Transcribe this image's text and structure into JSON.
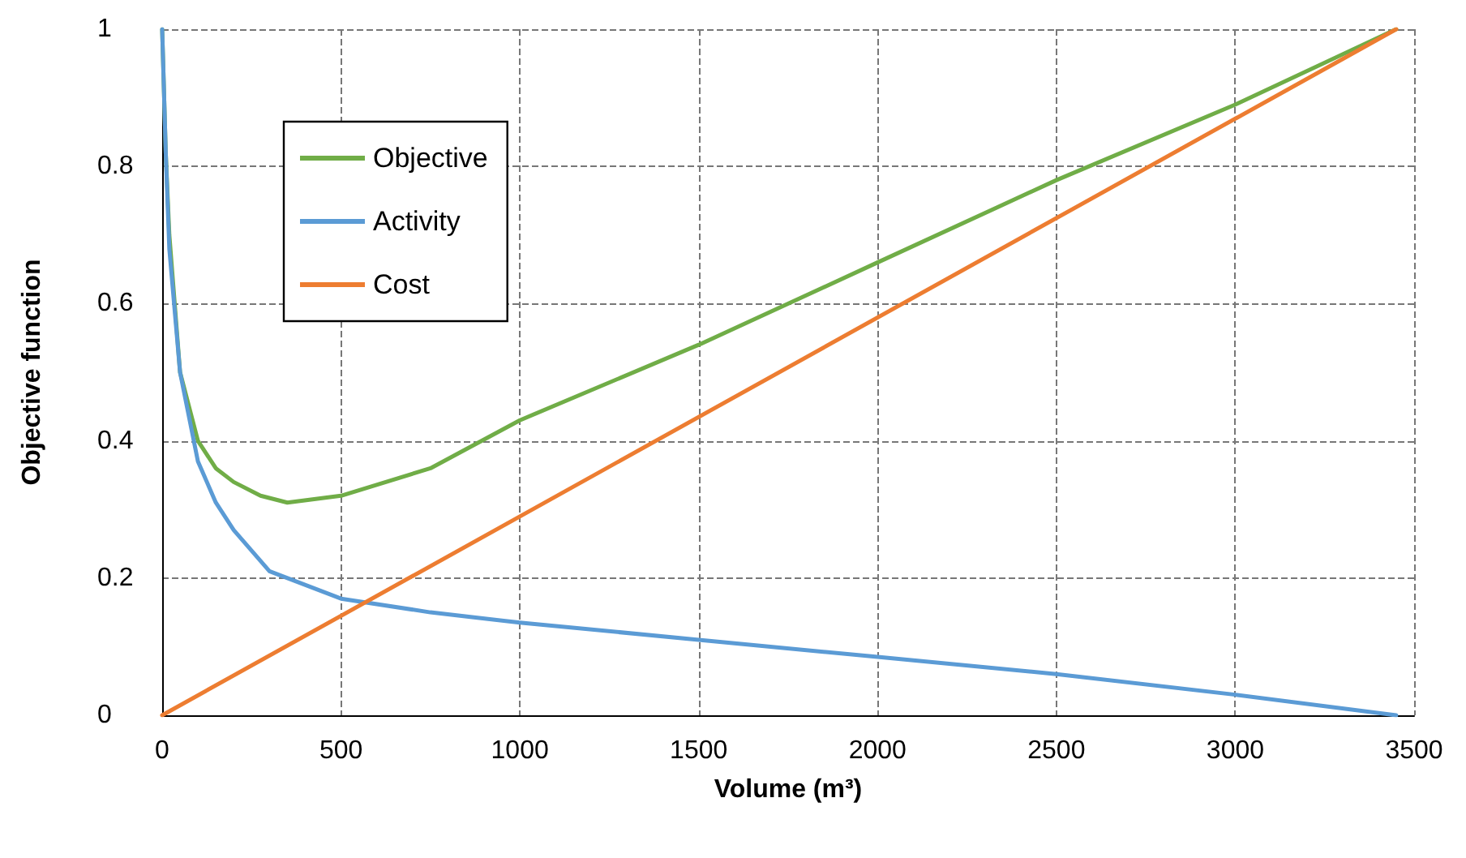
{
  "chart_data": {
    "type": "line",
    "xlabel": "Volume (m³)",
    "ylabel": "Objective function",
    "xlim": [
      0,
      3500
    ],
    "xticks": [
      0,
      500,
      1000,
      1500,
      2000,
      2500,
      3000,
      3500
    ],
    "ylim": [
      0,
      1
    ],
    "yticks": [
      0,
      0.2,
      0.4,
      0.6,
      0.8,
      1
    ],
    "grid": true,
    "legend": "top left",
    "marker": "none",
    "line_style": "solid",
    "series": [
      {
        "name": "Objective",
        "color": "#70ad47",
        "x": [
          0,
          10,
          20,
          50,
          100,
          150,
          200,
          275,
          350,
          500,
          750,
          1000,
          1500,
          2000,
          2500,
          3000,
          3450
        ],
        "values": [
          1,
          0.82,
          0.7,
          0.5,
          0.4,
          0.36,
          0.34,
          0.32,
          0.31,
          0.32,
          0.36,
          0.43,
          0.54,
          0.66,
          0.78,
          0.89,
          1
        ]
      },
      {
        "name": "Activity",
        "color": "#5b9bd5",
        "x": [
          0,
          10,
          20,
          50,
          100,
          150,
          200,
          300,
          500,
          750,
          1000,
          1500,
          2000,
          2500,
          3000,
          3450
        ],
        "values": [
          1,
          0.82,
          0.68,
          0.5,
          0.37,
          0.31,
          0.27,
          0.21,
          0.17,
          0.15,
          0.135,
          0.11,
          0.085,
          0.06,
          0.03,
          0
        ]
      },
      {
        "name": "Cost",
        "color": "#ed7d31",
        "x": [
          0,
          3450
        ],
        "values": [
          0,
          1
        ]
      }
    ]
  }
}
